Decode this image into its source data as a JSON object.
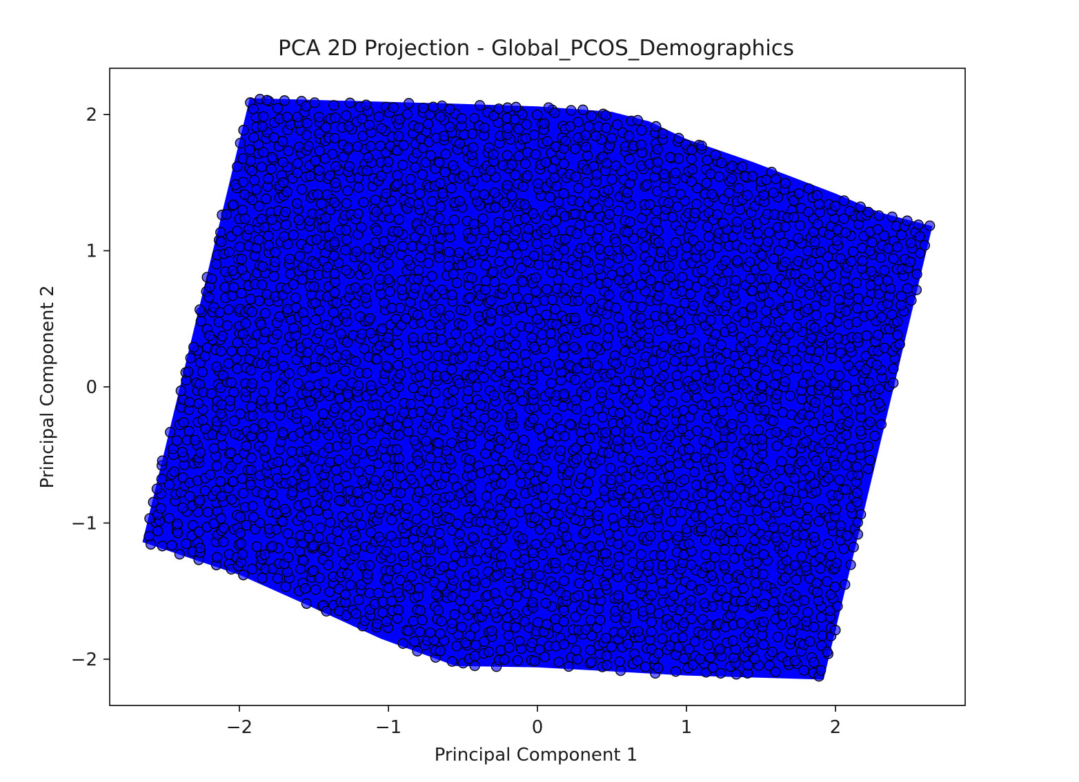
{
  "chart_data": {
    "type": "scatter",
    "title": "PCA 2D Projection - Global_PCOS_Demographics",
    "xlabel": "Principal Component 1",
    "ylabel": "Principal Component 2",
    "xlim": [
      -2.87,
      2.87
    ],
    "ylim": [
      -2.34,
      2.34
    ],
    "xticks": [
      -2,
      -1,
      0,
      1,
      2
    ],
    "yticks": [
      -2,
      -1,
      0,
      1,
      2
    ],
    "xtick_labels": [
      "−2",
      "−1",
      "0",
      "1",
      "2"
    ],
    "ytick_labels": [
      "−2",
      "−1",
      "0",
      "1",
      "2"
    ],
    "grid": false,
    "legend": "none",
    "marker_color": "#0000ff",
    "marker_edge_color": "#000000",
    "marker_alpha": 0.6,
    "region_outline": {
      "x": [
        -1.93,
        -0.55,
        0.0,
        0.5,
        0.75,
        1.0,
        1.45,
        2.0,
        2.3,
        2.65,
        1.92,
        1.0,
        0.0,
        -0.55,
        -1.05,
        -1.55,
        -2.0,
        -2.65
      ],
      "y": [
        2.12,
        2.08,
        2.06,
        2.02,
        1.95,
        1.82,
        1.65,
        1.42,
        1.28,
        1.18,
        -2.15,
        -2.12,
        -2.06,
        -2.05,
        -1.85,
        -1.6,
        -1.38,
        -1.14
      ]
    },
    "points_note": ""
  }
}
